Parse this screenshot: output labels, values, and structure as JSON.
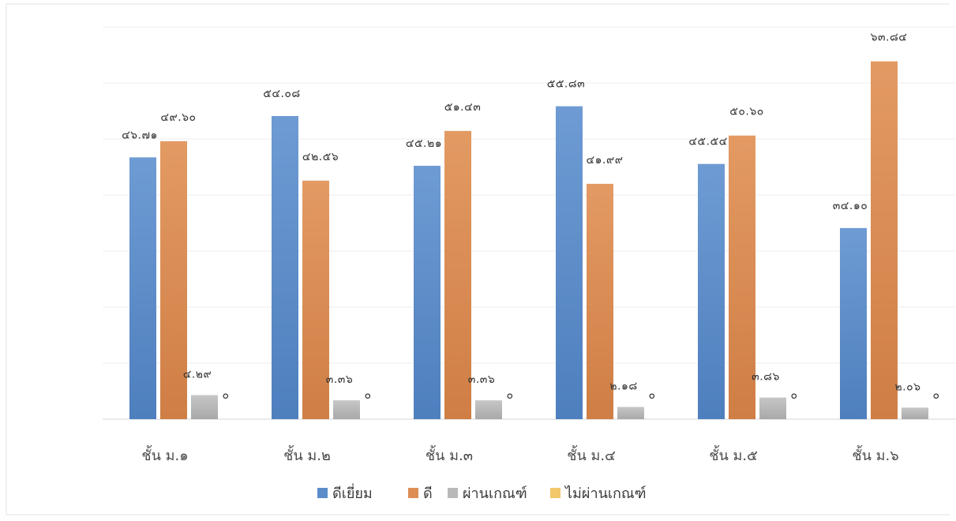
{
  "chart_data": {
    "type": "bar",
    "categories": [
      "ชั้น ม.๑",
      "ชั้น ม.๒",
      "ชั้น ม.๓",
      "ชั้น ม.๔",
      "ชั้น ม.๕",
      "ชั้น ม.๖"
    ],
    "ylim": [
      0,
      70
    ],
    "grid": true,
    "legend_position": "bottom",
    "series": [
      {
        "name": "ดีเยี่ยม",
        "color": "#5b8cc9",
        "values": [
          46.71,
          54.08,
          45.21,
          55.83,
          45.54,
          34.1
        ],
        "labels": [
          "๔๖.๗๑",
          "๕๔.๐๘",
          "๔๕.๒๑",
          "๕๕.๘๓",
          "๔๕.๕๔",
          "๓๔.๑๐"
        ]
      },
      {
        "name": "ดี",
        "color": "#dd8e55",
        "values": [
          49.6,
          42.56,
          51.43,
          41.99,
          50.6,
          63.84
        ],
        "labels": [
          "๔๙.๖๐",
          "๔๒.๕๖",
          "๕๑.๔๓",
          "๔๑.๙๙",
          "๕๐.๖๐",
          "๖๓.๘๔"
        ]
      },
      {
        "name": "ผ่านเกณฑ์",
        "color": "#b9b9b9",
        "values": [
          4.29,
          3.36,
          3.36,
          2.18,
          3.86,
          2.06
        ],
        "labels": [
          "๔.๒๙",
          "๓.๓๖",
          "๓.๓๖",
          "๒.๑๘",
          "๓.๘๖",
          "๒.๐๖"
        ]
      },
      {
        "name": "ไม่ผ่านเกณฑ์",
        "color": "#f2c76a",
        "values": [
          0,
          0,
          0,
          0,
          0,
          0
        ],
        "labels": [
          "๐",
          "๐",
          "๐",
          "๐",
          "๐",
          "๐"
        ]
      }
    ]
  }
}
